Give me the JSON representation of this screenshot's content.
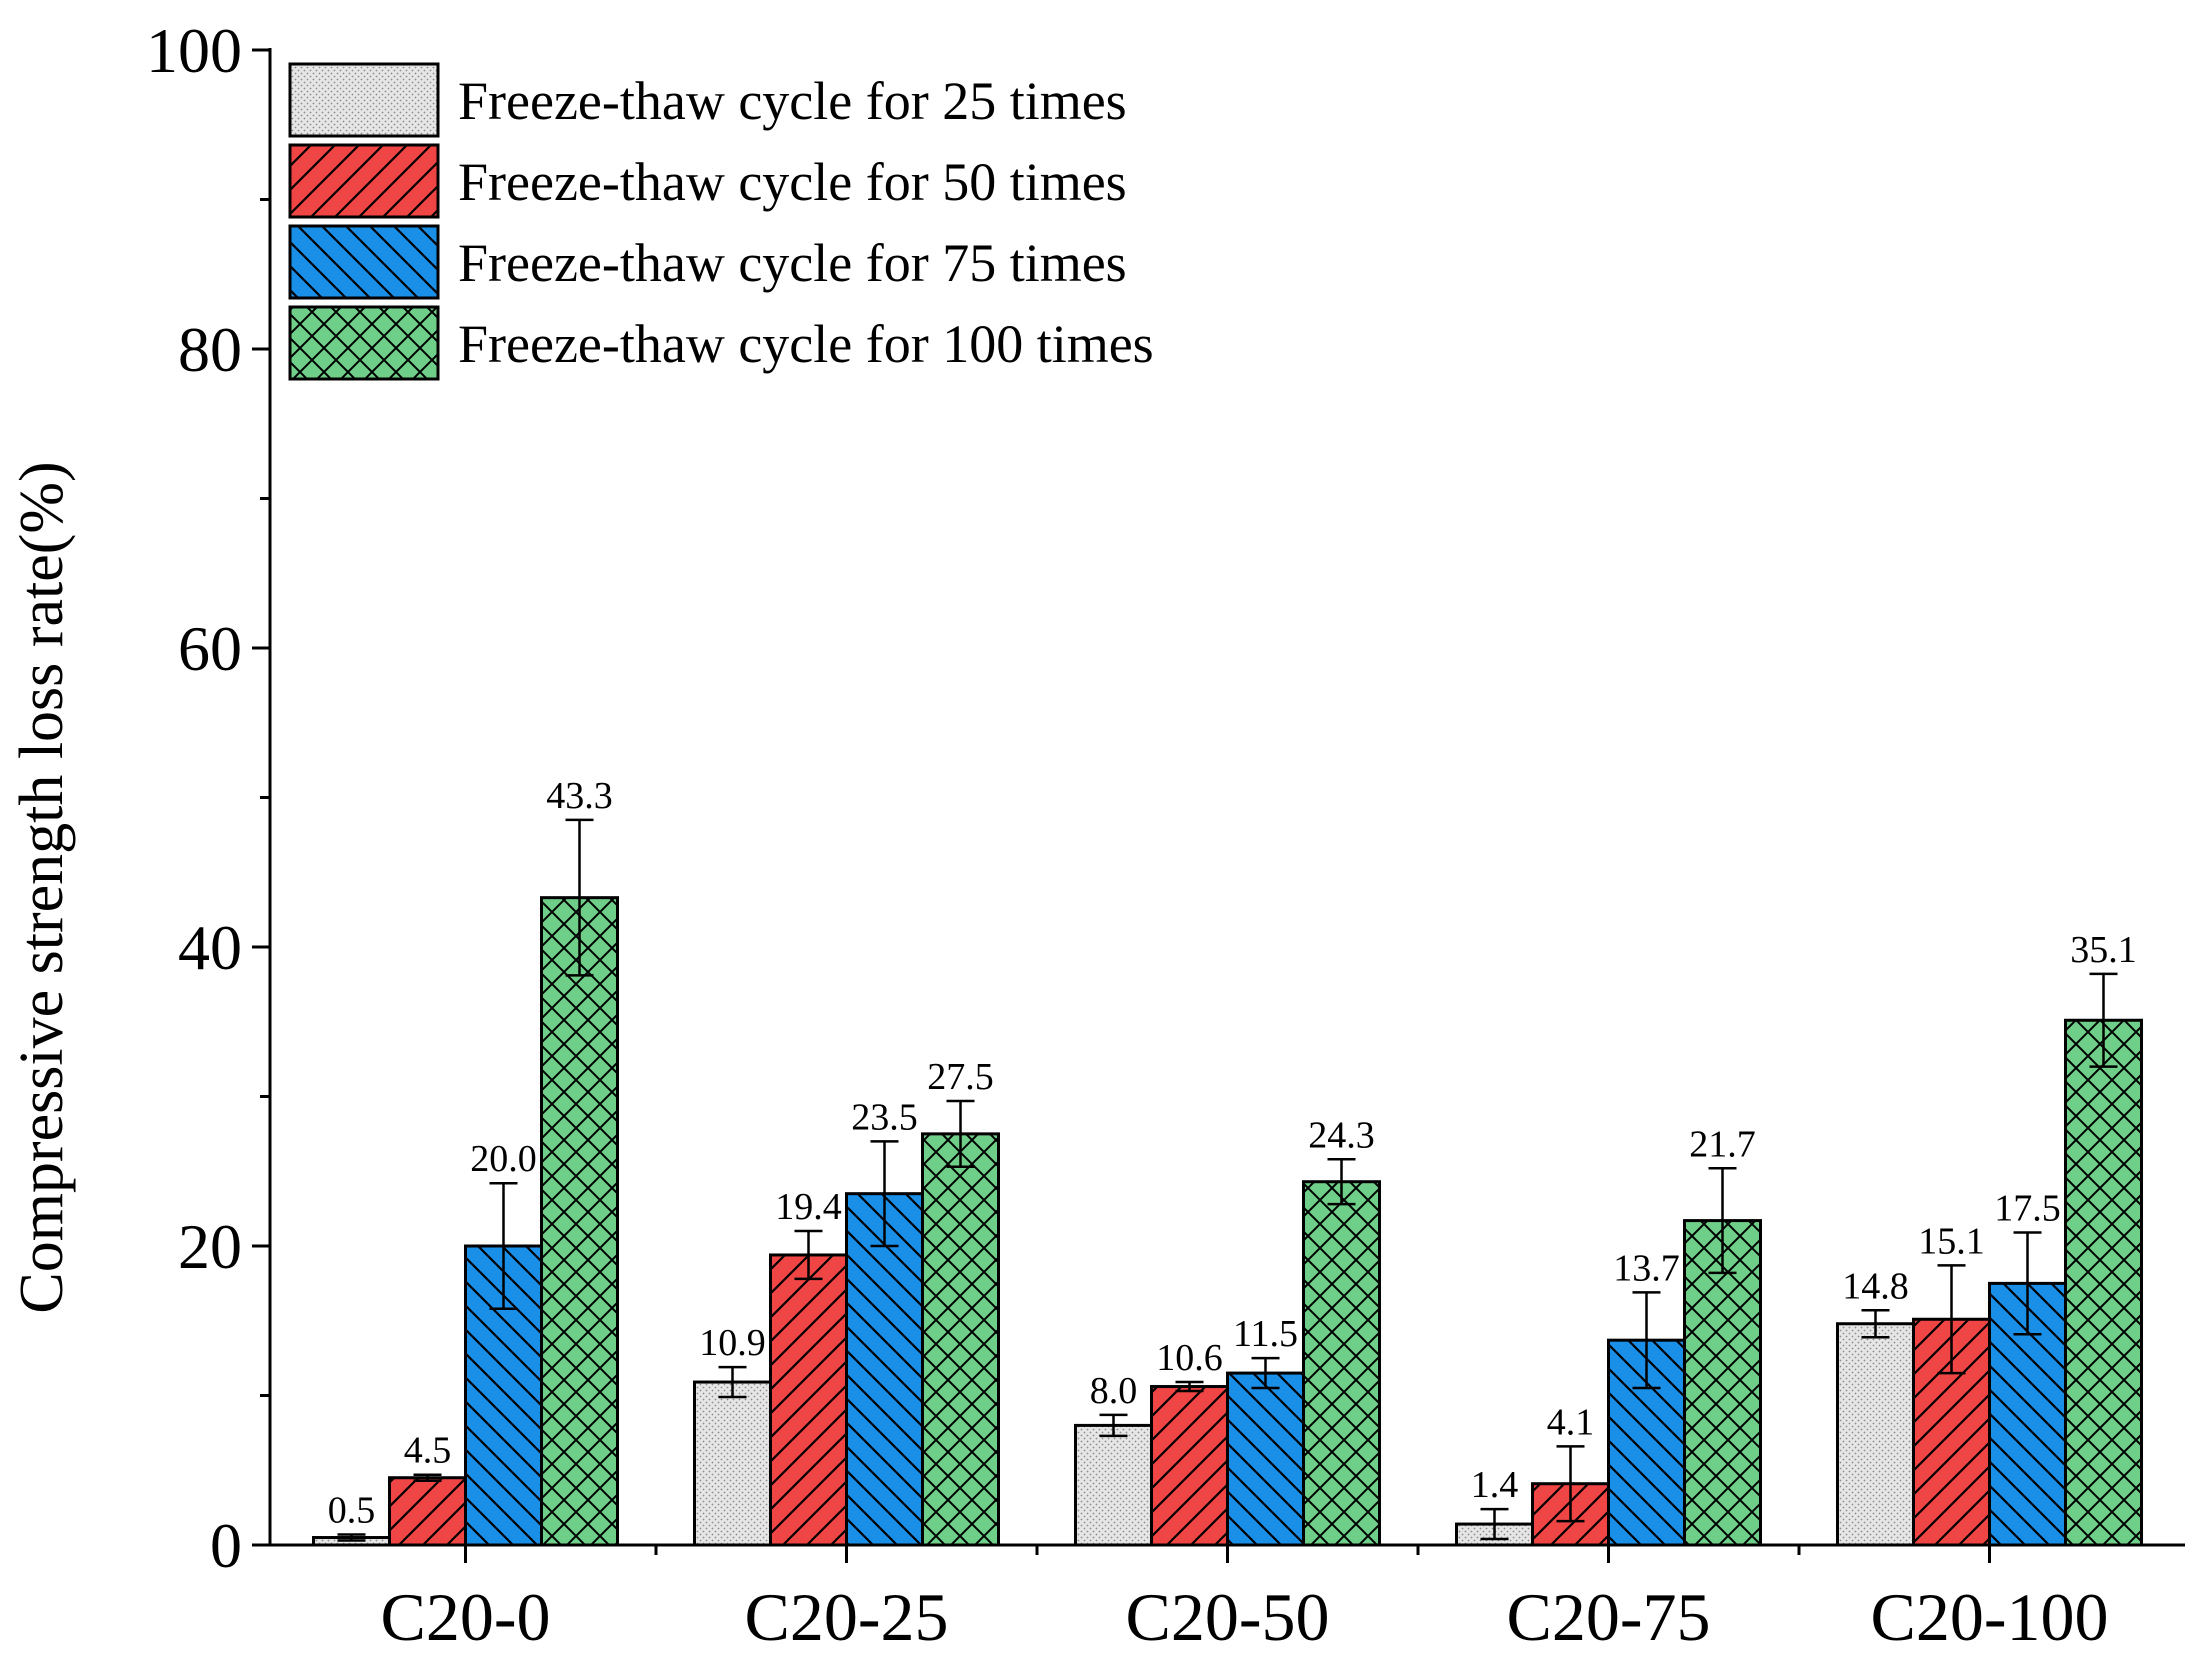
{
  "chart_data": {
    "type": "bar",
    "title": "",
    "xlabel": "",
    "ylabel": "Compressive strength loss rate(%)",
    "ylim": [
      0,
      100
    ],
    "yticks": [
      "0",
      "20",
      "40",
      "60",
      "80",
      "100"
    ],
    "grid": false,
    "legend_position": "top-left",
    "categories": [
      "C20-0",
      "C20-25",
      "C20-50",
      "C20-75",
      "C20-100"
    ],
    "series": [
      {
        "name": "Freeze-thaw cycle for 25 times",
        "color": "#e6e6e6",
        "pattern": "dots",
        "values": [
          0.5,
          10.9,
          8.0,
          1.4,
          14.8
        ],
        "labels": [
          "0.5",
          "10.9",
          "8.0",
          "1.4",
          "14.8"
        ],
        "errors": [
          0.2,
          1.0,
          0.7,
          1.0,
          0.9
        ]
      },
      {
        "name": "Freeze-thaw cycle for 50 times",
        "color": "#f04545",
        "pattern": "forward-diagonal",
        "values": [
          4.5,
          19.4,
          10.6,
          4.1,
          15.1
        ],
        "labels": [
          "4.5",
          "19.4",
          "10.6",
          "4.1",
          "15.1"
        ],
        "errors": [
          0.2,
          1.6,
          0.3,
          2.5,
          3.6
        ]
      },
      {
        "name": "Freeze-thaw cycle for 75 times",
        "color": "#1a8fe8",
        "pattern": "backward-diagonal",
        "values": [
          20.0,
          23.5,
          11.5,
          13.7,
          17.5
        ],
        "labels": [
          "20.0",
          "23.5",
          "11.5",
          "13.7",
          "17.5"
        ],
        "errors": [
          4.2,
          3.5,
          1.0,
          3.2,
          3.4
        ]
      },
      {
        "name": "Freeze-thaw cycle for 100 times",
        "color": "#6fcf88",
        "pattern": "crosshatch",
        "values": [
          43.3,
          27.5,
          24.3,
          21.7,
          35.1
        ],
        "labels": [
          "43.3",
          "27.5",
          "24.3",
          "21.7",
          "35.1"
        ],
        "errors": [
          5.2,
          2.2,
          1.5,
          3.5,
          3.1
        ]
      }
    ]
  }
}
